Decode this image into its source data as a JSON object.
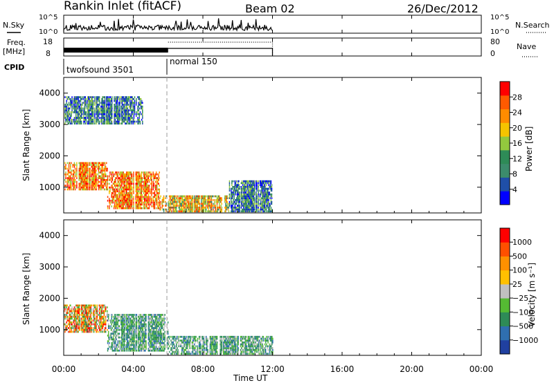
{
  "header": {
    "station": "Rankin Inlet (fitACF)",
    "beam": "Beam 02",
    "date": "26/Dec/2012"
  },
  "panels": {
    "nsky_label": "N.Sky",
    "nsky_ticks": [
      "10^5",
      "10^0"
    ],
    "nsearch_label": "N.Search",
    "freq_label_line1": "Freq.",
    "freq_label_line2": "[MHz]",
    "freq_ticks": [
      "18",
      "8"
    ],
    "nave_label": "Nave",
    "nave_ticks": [
      "80",
      "0"
    ],
    "cpid_label": "CPID",
    "cpid_segments": [
      {
        "label": "twofsound 3501",
        "start_hour": 0,
        "end_hour": 6
      },
      {
        "label": "normal 150",
        "start_hour": 6,
        "end_hour": 12
      }
    ]
  },
  "chart_data": [
    {
      "type": "heatmap",
      "name": "power-panel",
      "ylabel": "Slant Range [km]",
      "y_ticks": [
        "1000",
        "2000",
        "3000",
        "4000"
      ],
      "ylim": [
        180,
        4500
      ],
      "xlim_hours": [
        0,
        24
      ],
      "colorbar_label": "Power [dB]",
      "colorbar_ticks": [
        "4",
        "8",
        "12",
        "16",
        "20",
        "24",
        "28"
      ],
      "colorbar_colors": [
        "#0000ff",
        "#1f4fa8",
        "#3c8c6c",
        "#2e8b57",
        "#93c83e",
        "#f5c400",
        "#ff8c00",
        "#ff5a00",
        "#ff0000"
      ],
      "regions": [
        {
          "hours": [
            0.0,
            2.5
          ],
          "range_km": [
            900,
            1800
          ],
          "level": "high"
        },
        {
          "hours": [
            2.5,
            5.5
          ],
          "range_km": [
            300,
            1500
          ],
          "level": "high"
        },
        {
          "hours": [
            5.5,
            9.5
          ],
          "range_km": [
            200,
            700
          ],
          "level": "medium"
        },
        {
          "hours": [
            9.5,
            12.0
          ],
          "range_km": [
            200,
            1200
          ],
          "level": "low"
        },
        {
          "hours": [
            0.0,
            4.5
          ],
          "range_km": [
            3000,
            3900
          ],
          "level": "low"
        }
      ]
    },
    {
      "type": "heatmap",
      "name": "velocity-panel",
      "ylabel": "Slant Range [km]",
      "y_ticks": [
        "1000",
        "2000",
        "3000",
        "4000"
      ],
      "ylim": [
        180,
        4500
      ],
      "xlim_hours": [
        0,
        24
      ],
      "colorbar_label": "Velocity [m s⁻¹]",
      "colorbar_ticks": [
        "1000",
        "500",
        "100",
        "25",
        "−25",
        "−100",
        "−500",
        "−1000"
      ],
      "colorbar_colors": [
        "#2040a0",
        "#2f6fb0",
        "#2e8b57",
        "#55bb33",
        "#c0c0c0",
        "#ffc000",
        "#ff9000",
        "#ff5000",
        "#ff0000"
      ],
      "regions": [
        {
          "hours": [
            0.0,
            2.5
          ],
          "range_km": [
            900,
            1800
          ],
          "level": "mixed"
        },
        {
          "hours": [
            2.5,
            6.0
          ],
          "range_km": [
            300,
            1500
          ],
          "level": "positive"
        },
        {
          "hours": [
            6.0,
            12.0
          ],
          "range_km": [
            200,
            800
          ],
          "level": "positive"
        }
      ]
    }
  ],
  "x_axis": {
    "ticks": [
      "00:00",
      "04:00",
      "08:00",
      "12:00",
      "16:00",
      "20:00",
      "00:00"
    ],
    "label": "Time UT"
  }
}
